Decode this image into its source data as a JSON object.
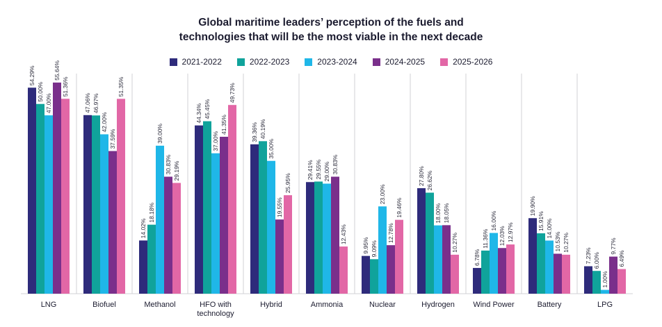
{
  "chart_data": {
    "type": "bar",
    "title_lines": [
      "Global maritime leaders’ perception of the fuels and",
      "technologies that will be the most viable in the next decade"
    ],
    "categories": [
      "LNG",
      "Biofuel",
      "Methanol",
      "HFO with technology",
      "Hybrid",
      "Ammonia",
      "Nuclear",
      "Hydrogen",
      "Wind Power",
      "Battery",
      "LPG"
    ],
    "category_lines": [
      [
        "LNG"
      ],
      [
        "Biofuel"
      ],
      [
        "Methanol"
      ],
      [
        "HFO with",
        "technology"
      ],
      [
        "Hybrid"
      ],
      [
        "Ammonia"
      ],
      [
        "Nuclear"
      ],
      [
        "Hydrogen"
      ],
      [
        "Wind Power"
      ],
      [
        "Battery"
      ],
      [
        "LPG"
      ]
    ],
    "series": [
      {
        "name": "2021-2022",
        "color": "#2e2b7b",
        "values": [
          54.29,
          47.06,
          14.02,
          44.34,
          39.36,
          29.41,
          9.95,
          27.8,
          6.78,
          19.9,
          7.23
        ],
        "labels": [
          "54.29%",
          "47.06%",
          "14.02%",
          "44.34%",
          "39.36%",
          "29.41%",
          "9.95%",
          "27.80%",
          "6.78%",
          "19.90%",
          "7.23%"
        ]
      },
      {
        "name": "2022-2023",
        "color": "#10a39b",
        "values": [
          50.0,
          46.97,
          18.18,
          45.45,
          40.19,
          29.55,
          9.09,
          26.62,
          11.36,
          15.91,
          6.0
        ],
        "labels": [
          "50.00%",
          "46.97%",
          "18.18%",
          "45.45%",
          "40.19%",
          "29.55%",
          "9.09%",
          "26.62%",
          "11.36%",
          "15.91%",
          "6.00%"
        ]
      },
      {
        "name": "2023-2024",
        "color": "#1fb7e8",
        "values": [
          47.0,
          42.0,
          39.0,
          37.0,
          35.0,
          29.0,
          23.0,
          18.0,
          16.0,
          14.0,
          1.0
        ],
        "labels": [
          "47.00%",
          "42.00%",
          "39.00%",
          "37.00%",
          "35.00%",
          "29.00%",
          "23.00%",
          "18.00%",
          "16.00%",
          "14.00%",
          "1.00%"
        ]
      },
      {
        "name": "2024-2025",
        "color": "#7a2f8b",
        "values": [
          55.64,
          37.59,
          30.83,
          41.35,
          19.55,
          30.83,
          12.78,
          18.05,
          12.03,
          10.53,
          9.77
        ],
        "labels": [
          "55.64%",
          "37.59%",
          "30.83%",
          "41.35%",
          "19.55%",
          "30.83%",
          "12.78%",
          "18.05%",
          "12.03%",
          "10.53%",
          "9.77%"
        ]
      },
      {
        "name": "2025-2026",
        "color": "#e267a6",
        "values": [
          51.36,
          51.35,
          29.19,
          49.73,
          25.95,
          12.43,
          19.46,
          10.27,
          12.97,
          10.27,
          6.49
        ],
        "labels": [
          "51.36%",
          "51.35%",
          "29.19%",
          "49.73%",
          "25.95%",
          "12.43%",
          "19.46%",
          "10.27%",
          "12.97%",
          "10.27%",
          "6.49%"
        ]
      }
    ],
    "ylim": [
      0,
      58
    ],
    "grid": "vertical separators between categories",
    "legend_position": "top-center",
    "background_color": "#ffffff",
    "separator_color": "#d0d0d6"
  }
}
